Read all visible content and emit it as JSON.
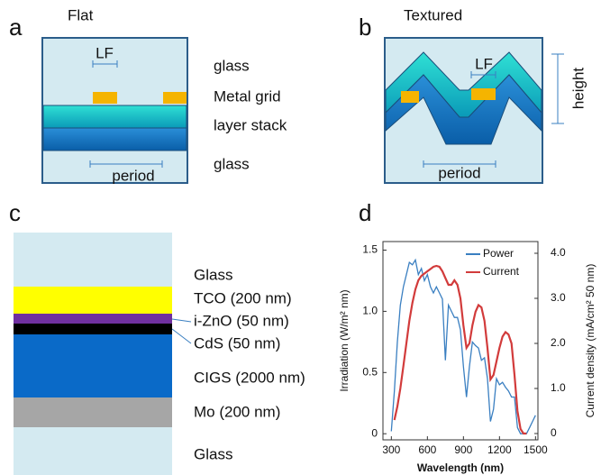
{
  "panel_a": {
    "letter": "a",
    "title": "Flat",
    "lf": "LF",
    "labels": [
      "glass",
      "Metal grid",
      "layer stack",
      "glass"
    ],
    "period": "period"
  },
  "panel_b": {
    "letter": "b",
    "title": "Textured",
    "lf": "LF",
    "height": "height",
    "period": "period"
  },
  "panel_c": {
    "letter": "c",
    "layers": [
      "Glass",
      "TCO (200 nm)",
      "i-ZnO (50 nm)",
      "CdS (50 nm)",
      "CIGS (2000 nm)",
      "Mo (200  nm)",
      "Glass"
    ]
  },
  "panel_d": {
    "letter": "d"
  },
  "chart_data": {
    "type": "line",
    "x_label": "Wavelength (nm)",
    "y_label": "Irradiation (W/m² nm)",
    "y2_label": "Current density (mA/cm² 50 nm)",
    "x": [
      300,
      325,
      350,
      375,
      400,
      425,
      450,
      475,
      500,
      525,
      550,
      575,
      600,
      625,
      650,
      675,
      700,
      725,
      750,
      775,
      800,
      825,
      850,
      875,
      900,
      925,
      950,
      975,
      1000,
      1025,
      1050,
      1075,
      1100,
      1125,
      1150,
      1175,
      1200,
      1225,
      1250,
      1275,
      1300,
      1325,
      1350,
      1375,
      1400,
      1425,
      1450,
      1475,
      1500
    ],
    "series": [
      {
        "name": "Power",
        "color": "#3a7fc1",
        "values": [
          0.02,
          0.35,
          0.75,
          1.05,
          1.2,
          1.3,
          1.4,
          1.38,
          1.42,
          1.3,
          1.35,
          1.25,
          1.3,
          1.2,
          1.15,
          1.2,
          1.15,
          1.1,
          0.6,
          1.05,
          1.0,
          0.95,
          0.95,
          0.85,
          0.55,
          0.3,
          0.55,
          0.75,
          0.72,
          0.7,
          0.6,
          0.62,
          0.45,
          0.1,
          0.2,
          0.45,
          0.4,
          0.42,
          0.38,
          0.35,
          0.3,
          0.3,
          0.05,
          0.0,
          0.0,
          0.0,
          0.05,
          0.1,
          0.15
        ]
      },
      {
        "name": "Current",
        "color": "#d23b3b",
        "axis": "y2",
        "values": [
          null,
          0.3,
          0.6,
          1.0,
          1.5,
          2.0,
          2.5,
          2.9,
          3.2,
          3.4,
          3.5,
          3.55,
          3.6,
          3.65,
          3.7,
          3.72,
          3.7,
          3.6,
          3.45,
          3.3,
          3.3,
          3.4,
          3.3,
          3.0,
          2.4,
          1.9,
          2.0,
          2.4,
          2.7,
          2.85,
          2.8,
          2.5,
          1.9,
          1.2,
          1.3,
          1.6,
          1.9,
          2.15,
          2.25,
          2.2,
          2.0,
          1.3,
          0.5,
          0.1,
          0.0,
          0.0,
          null,
          null,
          null
        ]
      }
    ],
    "xlim": [
      230,
      1520
    ],
    "xticks": [
      300,
      600,
      900,
      1200,
      1500
    ],
    "ylim": [
      -0.05,
      1.57
    ],
    "yticks": [
      0,
      0.5,
      {
        "value": 1,
        "label": "1.0"
      },
      1.5
    ],
    "y2lim": [
      -0.14,
      4.26
    ],
    "y2ticks": [
      0,
      {
        "value": 1,
        "label": "1.0"
      },
      {
        "value": 2,
        "label": "2.0"
      },
      {
        "value": 3,
        "label": "3.0"
      },
      {
        "value": 4,
        "label": "4.0"
      }
    ],
    "legend": "upper right"
  }
}
